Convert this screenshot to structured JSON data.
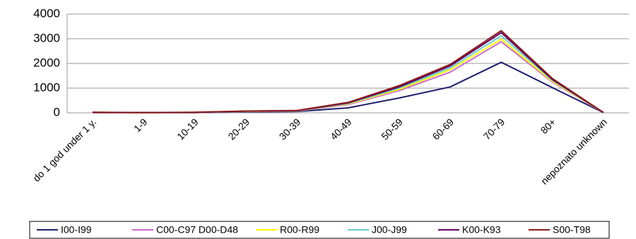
{
  "chart_data": {
    "type": "line",
    "categories": [
      "do 1 god under 1 y.",
      "1-9",
      "10-19",
      "20-29",
      "30-39",
      "40-49",
      "50-59",
      "60-69",
      "70-79",
      "80+",
      "nepoznato unknown"
    ],
    "ylim": [
      0,
      4000
    ],
    "yticks": [
      "0",
      "1000",
      "2000",
      "3000",
      "4000"
    ],
    "grid": true,
    "legend_position": "bottom",
    "series": [
      {
        "name": "I00-I99",
        "color": "#1f1f6e",
        "values": [
          10,
          5,
          10,
          40,
          50,
          200,
          600,
          1050,
          2050,
          1020,
          10
        ]
      },
      {
        "name": "C00-C97 D00-D48",
        "color": "#cc66cc",
        "values": [
          15,
          8,
          15,
          55,
          70,
          330,
          900,
          1650,
          2880,
          1250,
          12
        ]
      },
      {
        "name": "R00-R99",
        "color": "#ffff00",
        "values": [
          16,
          9,
          16,
          60,
          75,
          360,
          950,
          1750,
          2980,
          1280,
          12
        ]
      },
      {
        "name": "J00-J99",
        "color": "#66cccc",
        "values": [
          17,
          10,
          17,
          65,
          80,
          380,
          1000,
          1820,
          3120,
          1320,
          12
        ]
      },
      {
        "name": "K00-K93",
        "color": "#660066",
        "values": [
          18,
          10,
          18,
          68,
          85,
          400,
          1050,
          1900,
          3250,
          1350,
          12
        ]
      },
      {
        "name": "S00-T98",
        "color": "#8b1a1a",
        "values": [
          19,
          11,
          20,
          72,
          90,
          420,
          1100,
          1960,
          3330,
          1390,
          12
        ]
      }
    ]
  }
}
